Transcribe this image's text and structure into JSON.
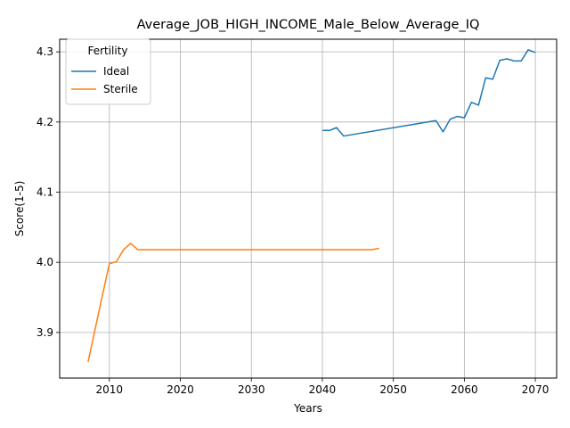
{
  "chart_data": {
    "type": "line",
    "title": "Average_JOB_HIGH_INCOME_Male_Below_Average_IQ",
    "xlabel": "Years",
    "ylabel": "Score(1-5)",
    "xlim": [
      2003,
      2073
    ],
    "ylim": [
      3.835,
      4.318
    ],
    "xticks": [
      2010,
      2020,
      2030,
      2040,
      2050,
      2060,
      2070
    ],
    "yticks": [
      3.9,
      4.0,
      4.1,
      4.2,
      4.3
    ],
    "ytick_labels": [
      "3.9",
      "4.0",
      "4.1",
      "4.2",
      "4.3"
    ],
    "grid": true,
    "legend": {
      "title": "Fertility",
      "placement": "top-left"
    },
    "series": [
      {
        "name": "Ideal",
        "color": "#1f77b4",
        "x": [
          2040,
          2041,
          2042,
          2043,
          2056,
          2057,
          2058,
          2059,
          2060,
          2061,
          2062,
          2063,
          2064,
          2065,
          2066,
          2067,
          2068,
          2069,
          2070
        ],
        "y": [
          4.188,
          4.188,
          4.192,
          4.18,
          4.202,
          4.186,
          4.204,
          4.208,
          4.206,
          4.228,
          4.224,
          4.263,
          4.261,
          4.288,
          4.29,
          4.287,
          4.287,
          4.303,
          4.299
        ]
      },
      {
        "name": "Sterile",
        "color": "#ff7f0e",
        "x": [
          2007,
          2008,
          2009,
          2010,
          2011,
          2012,
          2013,
          2014,
          2015,
          2020,
          2030,
          2040,
          2047,
          2048
        ],
        "y": [
          3.858,
          3.905,
          3.952,
          3.998,
          4.001,
          4.018,
          4.027,
          4.018,
          4.018,
          4.018,
          4.018,
          4.018,
          4.018,
          4.02
        ]
      }
    ]
  }
}
